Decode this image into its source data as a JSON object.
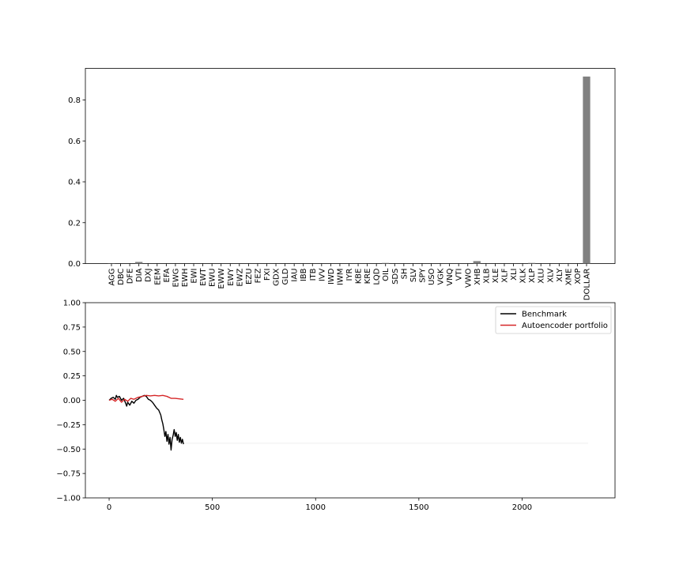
{
  "chart_data": [
    {
      "type": "bar",
      "categories": [
        "AGG",
        "DBC",
        "DFE",
        "DIA",
        "DXJ",
        "EEM",
        "EFA",
        "EWG",
        "EWH",
        "EWI",
        "EWT",
        "EWU",
        "EWW",
        "EWY",
        "EWZ",
        "EZU",
        "FEZ",
        "FXI",
        "GDX",
        "GLD",
        "IAU",
        "IBB",
        "ITB",
        "IVV",
        "IWD",
        "IWM",
        "IYR",
        "KBE",
        "KRE",
        "LQD",
        "OIL",
        "SDS",
        "SH",
        "SLV",
        "SPY",
        "USO",
        "VGK",
        "VNQ",
        "VTI",
        "VWO",
        "XHB",
        "XLB",
        "XLE",
        "XLF",
        "XLI",
        "XLK",
        "XLP",
        "XLU",
        "XLV",
        "XLY",
        "XME",
        "XOP",
        "DOLLAR"
      ],
      "values": [
        0.001,
        0,
        0,
        0.008,
        0,
        0,
        0,
        0,
        0,
        0,
        0,
        0,
        0,
        0,
        0,
        0,
        0,
        0,
        0,
        0,
        0,
        0,
        0,
        0,
        0,
        0,
        0,
        0,
        0,
        0,
        0.003,
        0,
        0,
        0,
        0,
        0,
        0,
        0,
        0,
        0,
        0.012,
        0,
        0,
        0,
        0,
        0,
        0.003,
        0,
        0,
        0,
        0,
        0,
        0.915
      ],
      "ylim": [
        0,
        0.955
      ],
      "yticks": [
        "0.0",
        "0.2",
        "0.4",
        "0.6",
        "0.8"
      ],
      "ytick_values": [
        0,
        0.2,
        0.4,
        0.6,
        0.8
      ],
      "bar_color": "#808080"
    },
    {
      "type": "line",
      "xlim": [
        -115,
        2450
      ],
      "ylim": [
        -1.0,
        1.0
      ],
      "xticks": [
        "0",
        "500",
        "1000",
        "1500",
        "2000"
      ],
      "xtick_values": [
        0,
        500,
        1000,
        1500,
        2000
      ],
      "yticks": [
        "−1.00",
        "−0.75",
        "−0.50",
        "−0.25",
        "0.00",
        "0.25",
        "0.50",
        "0.75",
        "1.00"
      ],
      "ytick_values": [
        -1.0,
        -0.75,
        -0.5,
        -0.25,
        0.0,
        0.25,
        0.5,
        0.75,
        1.0
      ],
      "legend": "top-right",
      "series": [
        {
          "name": "Benchmark",
          "color": "#000000",
          "points": [
            [
              0,
              0
            ],
            [
              10,
              0.02
            ],
            [
              20,
              0.03
            ],
            [
              30,
              0.01
            ],
            [
              35,
              0.05
            ],
            [
              40,
              0.03
            ],
            [
              50,
              0.04
            ],
            [
              60,
              0.0
            ],
            [
              70,
              0.02
            ],
            [
              80,
              -0.03
            ],
            [
              85,
              -0.06
            ],
            [
              90,
              -0.02
            ],
            [
              100,
              -0.05
            ],
            [
              110,
              -0.01
            ],
            [
              120,
              -0.03
            ],
            [
              130,
              0.0
            ],
            [
              140,
              0.01
            ],
            [
              150,
              0.03
            ],
            [
              160,
              0.04
            ],
            [
              170,
              0.05
            ],
            [
              180,
              0.04
            ],
            [
              190,
              0.01
            ],
            [
              200,
              0.0
            ],
            [
              210,
              -0.02
            ],
            [
              220,
              -0.05
            ],
            [
              230,
              -0.08
            ],
            [
              240,
              -0.1
            ],
            [
              250,
              -0.15
            ],
            [
              255,
              -0.2
            ],
            [
              260,
              -0.24
            ],
            [
              265,
              -0.3
            ],
            [
              270,
              -0.37
            ],
            [
              275,
              -0.32
            ],
            [
              280,
              -0.42
            ],
            [
              285,
              -0.35
            ],
            [
              290,
              -0.45
            ],
            [
              295,
              -0.38
            ],
            [
              300,
              -0.51
            ],
            [
              305,
              -0.4
            ],
            [
              310,
              -0.36
            ],
            [
              315,
              -0.3
            ],
            [
              320,
              -0.37
            ],
            [
              325,
              -0.33
            ],
            [
              330,
              -0.41
            ],
            [
              335,
              -0.35
            ],
            [
              340,
              -0.43
            ],
            [
              345,
              -0.38
            ],
            [
              350,
              -0.44
            ],
            [
              355,
              -0.4
            ],
            [
              360,
              -0.45
            ]
          ]
        },
        {
          "name": "Autoencoder portfolio",
          "color": "#d62728",
          "points": [
            [
              0,
              0
            ],
            [
              15,
              0.01
            ],
            [
              30,
              -0.01
            ],
            [
              45,
              0.02
            ],
            [
              60,
              -0.02
            ],
            [
              75,
              0.01
            ],
            [
              90,
              -0.01
            ],
            [
              105,
              0.02
            ],
            [
              120,
              0.01
            ],
            [
              140,
              0.03
            ],
            [
              160,
              0.04
            ],
            [
              180,
              0.05
            ],
            [
              200,
              0.045
            ],
            [
              220,
              0.05
            ],
            [
              240,
              0.045
            ],
            [
              260,
              0.05
            ],
            [
              280,
              0.04
            ],
            [
              300,
              0.02
            ],
            [
              320,
              0.02
            ],
            [
              340,
              0.015
            ],
            [
              360,
              0.01
            ]
          ]
        }
      ],
      "flat_line": {
        "color": "#e8e8e8",
        "y": -0.44,
        "x": [
          360,
          2320
        ]
      }
    }
  ]
}
